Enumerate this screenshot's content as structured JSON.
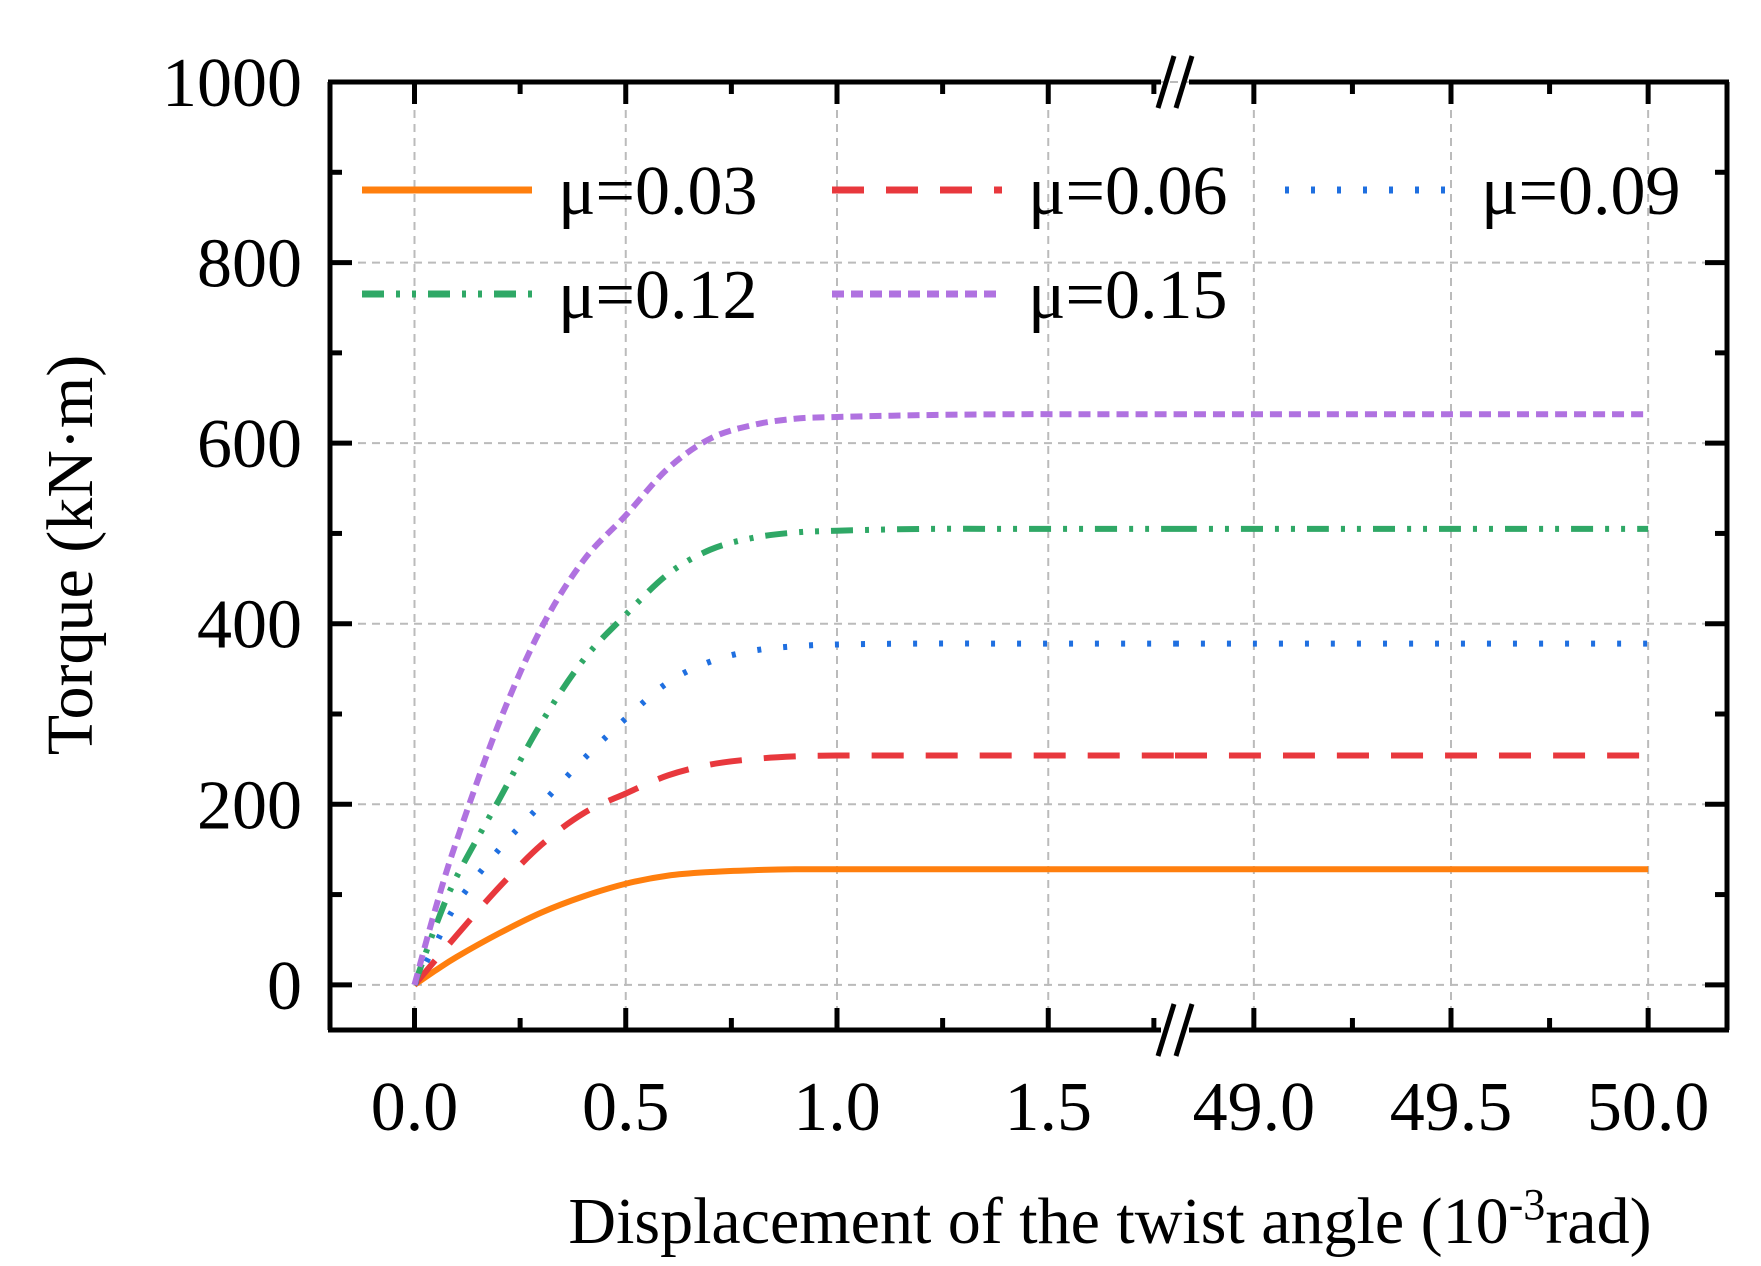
{
  "chart_data": {
    "type": "line",
    "title": "",
    "xlabel": "Displacement of the twist angle (10",
    "xlabel_sup": "-3",
    "xlabel_suffix": "rad)",
    "ylabel": "Torque (kN·m)",
    "ylim": [
      -50,
      1000
    ],
    "yticks": [
      0,
      200,
      400,
      600,
      800,
      1000
    ],
    "ytick_labels": [
      "0",
      "200",
      "400",
      "600",
      "800",
      "1000"
    ],
    "x_segments": [
      {
        "range": [
          -0.2,
          1.8
        ],
        "ticks": [
          0.0,
          0.5,
          1.0,
          1.5
        ],
        "tick_labels": [
          "0.0",
          "0.5",
          "1.0",
          "1.5"
        ]
      },
      {
        "range": [
          48.8,
          50.2
        ],
        "ticks": [
          49.0,
          49.5,
          50.0
        ],
        "tick_labels": [
          "49.0",
          "49.5",
          "50.0"
        ]
      }
    ],
    "axis_break": true,
    "grid": true,
    "legend_position": "top",
    "series": [
      {
        "name": "μ=0.03",
        "color": "#FF7F0E",
        "style": "solid",
        "x": [
          0,
          0.05,
          0.1,
          0.2,
          0.3,
          0.4,
          0.5,
          0.6,
          0.7,
          0.8,
          0.9,
          1.0,
          1.2,
          1.4,
          1.6,
          1.8,
          48.8,
          49.0,
          49.5,
          50.0
        ],
        "y": [
          0,
          16,
          31,
          57,
          80,
          98,
          112,
          121,
          125,
          127,
          128,
          128,
          128,
          128,
          128,
          128,
          128,
          128,
          128,
          128
        ]
      },
      {
        "name": "μ=0.06",
        "color": "#E8383D",
        "style": "dashed",
        "x": [
          0,
          0.1,
          0.2,
          0.3,
          0.4,
          0.5,
          0.6,
          0.7,
          0.8,
          0.9,
          1.0,
          1.2,
          1.4,
          1.6,
          1.8,
          48.8,
          49.0,
          49.5,
          50.0
        ],
        "y": [
          0,
          55,
          108,
          155,
          190,
          212,
          232,
          244,
          250,
          253,
          254,
          254,
          254,
          254,
          254,
          254,
          254,
          254,
          254
        ]
      },
      {
        "name": "μ=0.09",
        "color": "#1F6FE0",
        "style": "dotted",
        "x": [
          0,
          0.05,
          0.1,
          0.2,
          0.3,
          0.4,
          0.5,
          0.6,
          0.7,
          0.8,
          0.9,
          1.0,
          1.2,
          1.4,
          1.6,
          1.8,
          48.8,
          49.0,
          49.5,
          50.0
        ],
        "y": [
          0,
          45,
          90,
          150,
          200,
          250,
          295,
          335,
          358,
          370,
          375,
          377,
          378,
          378,
          378,
          378,
          378,
          378,
          378,
          378
        ]
      },
      {
        "name": "μ=0.12",
        "color": "#2FA866",
        "style": "dash-dot-dot",
        "x": [
          0,
          0.05,
          0.1,
          0.2,
          0.3,
          0.4,
          0.5,
          0.6,
          0.7,
          0.8,
          0.9,
          1.0,
          1.2,
          1.4,
          1.6,
          1.8,
          48.8,
          49.0,
          49.5,
          50.0
        ],
        "y": [
          0,
          65,
          120,
          205,
          290,
          360,
          410,
          455,
          482,
          495,
          501,
          503,
          505,
          505,
          505,
          505,
          505,
          505,
          505,
          505
        ]
      },
      {
        "name": "μ=0.15",
        "color": "#B072E0",
        "style": "short-dash",
        "x": [
          0,
          0.05,
          0.1,
          0.2,
          0.3,
          0.4,
          0.5,
          0.6,
          0.7,
          0.8,
          0.9,
          1.0,
          1.2,
          1.4,
          1.6,
          1.8,
          48.8,
          49.0,
          49.5,
          50.0
        ],
        "y": [
          0,
          85,
          160,
          290,
          395,
          470,
          520,
          572,
          605,
          620,
          627,
          629,
          631,
          632,
          632,
          632,
          632,
          632,
          632,
          632
        ]
      }
    ]
  }
}
